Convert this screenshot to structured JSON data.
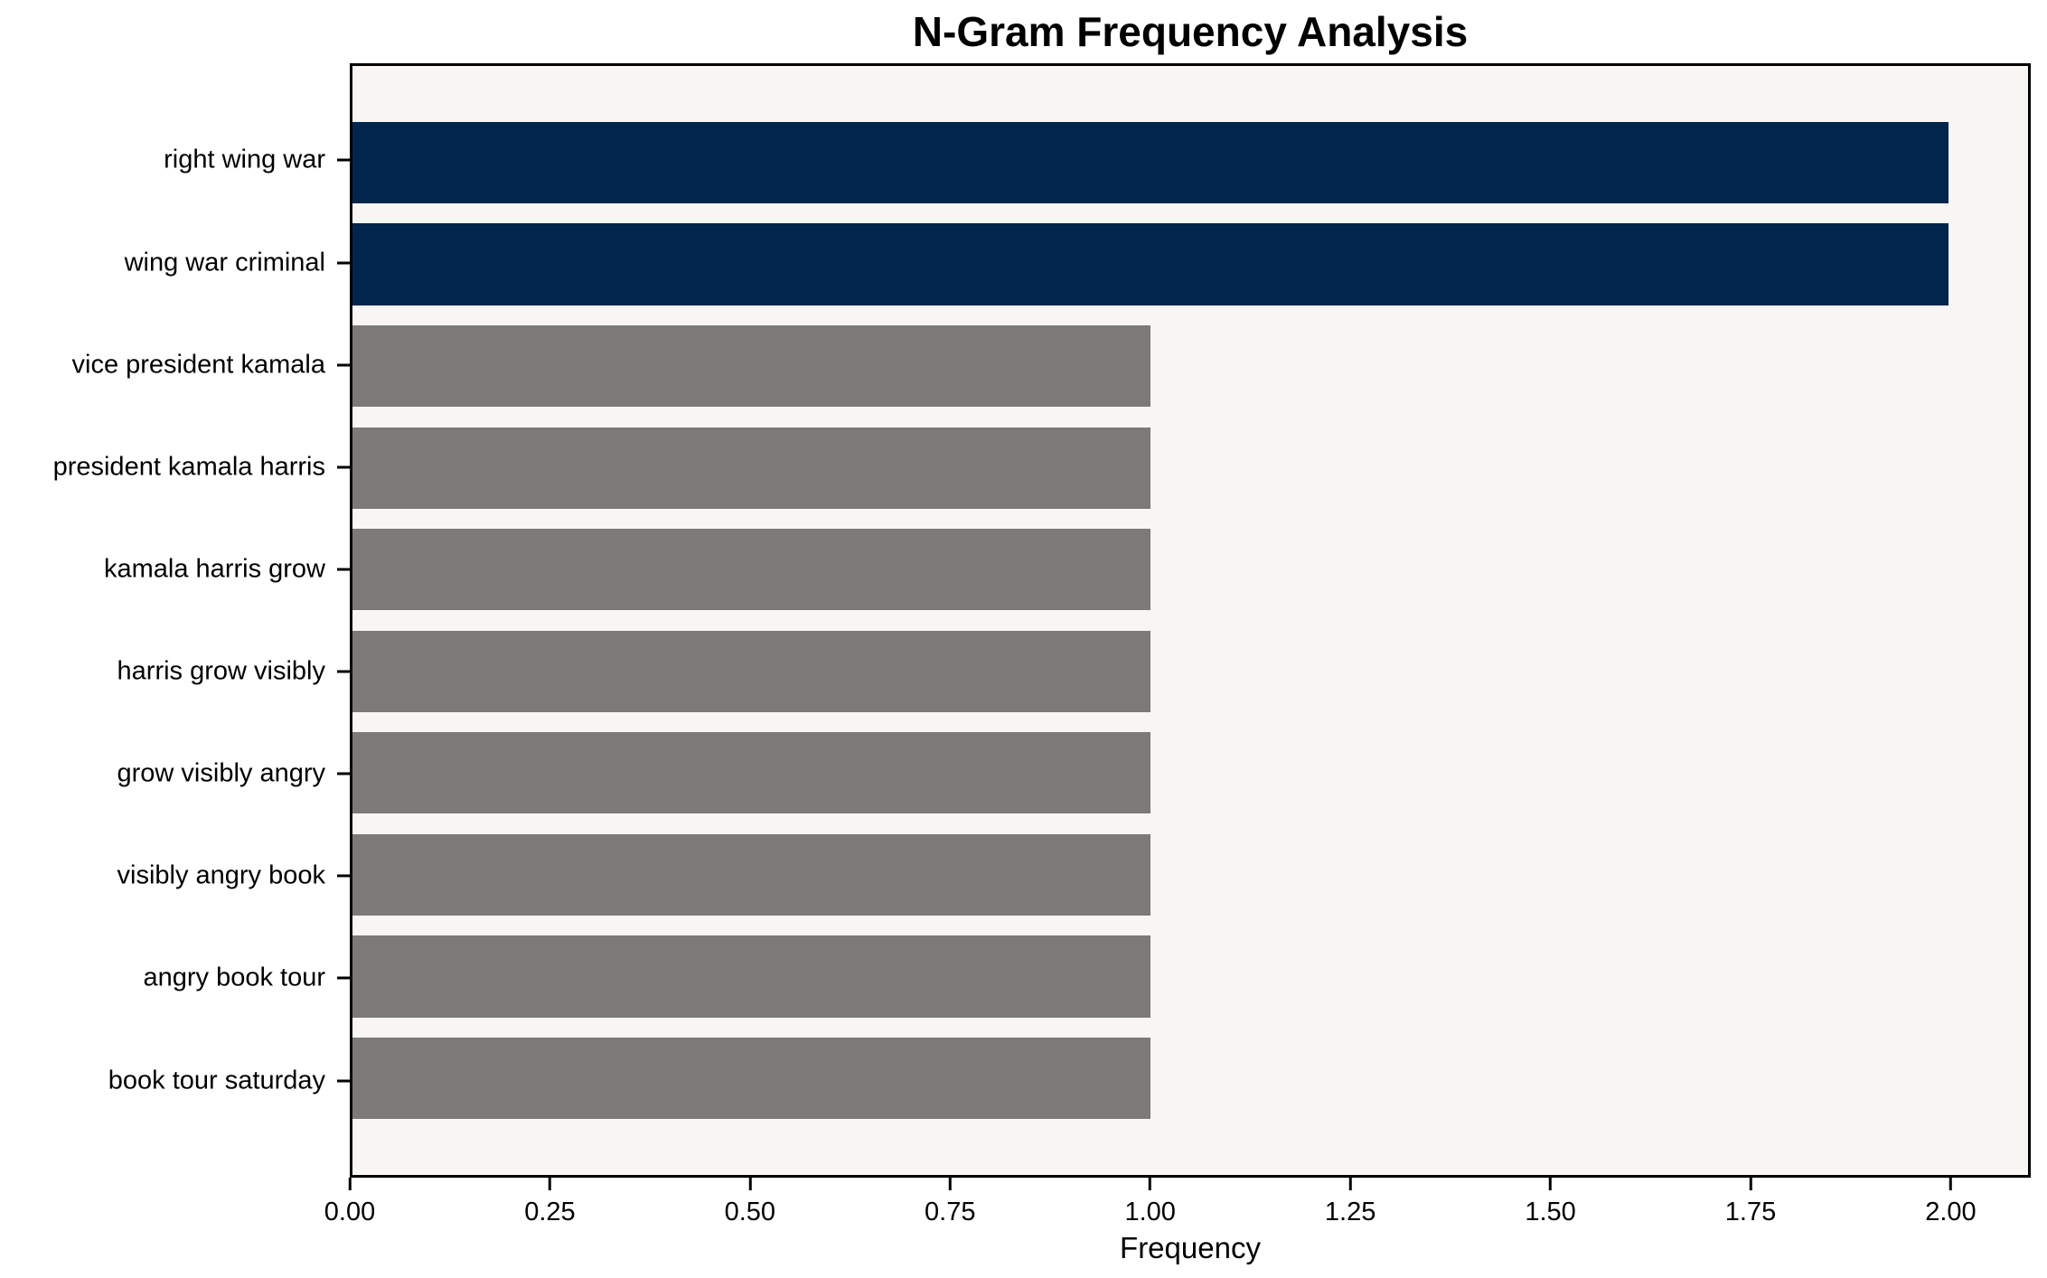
{
  "chart_data": {
    "type": "bar",
    "orientation": "horizontal",
    "title": "N-Gram Frequency Analysis",
    "xlabel": "Frequency",
    "ylabel": "",
    "categories": [
      "right wing war",
      "wing war criminal",
      "vice president kamala",
      "president kamala harris",
      "kamala harris grow",
      "harris grow visibly",
      "grow visibly angry",
      "visibly angry book",
      "angry book tour",
      "book tour saturday"
    ],
    "values": [
      2,
      2,
      1,
      1,
      1,
      1,
      1,
      1,
      1,
      1
    ],
    "bar_colors": [
      "#02254c",
      "#02254c",
      "#7b7a77",
      "#7b7a77",
      "#7b7a77",
      "#7b7a77",
      "#7b7a77",
      "#7b7a77",
      "#7b7a77",
      "#7b7a77"
    ],
    "xlim": [
      0,
      2.1
    ],
    "xticks": [
      "0.00",
      "0.25",
      "0.50",
      "0.75",
      "1.00",
      "1.25",
      "1.50",
      "1.75",
      "2.00"
    ],
    "xtick_values": [
      0,
      0.25,
      0.5,
      0.75,
      1.0,
      1.25,
      1.5,
      1.75,
      2.0
    ],
    "bar_height_units": 0.8,
    "y_outer_margin_units": 0.95,
    "grid": false,
    "legend": null,
    "colors": {
      "highlight_bar": "#02254c",
      "default_bar": "#7b7a77",
      "plot_background": "#f7f6f5",
      "figure_background": "#ffffff",
      "spine": "#000000",
      "text": "#000000"
    }
  }
}
